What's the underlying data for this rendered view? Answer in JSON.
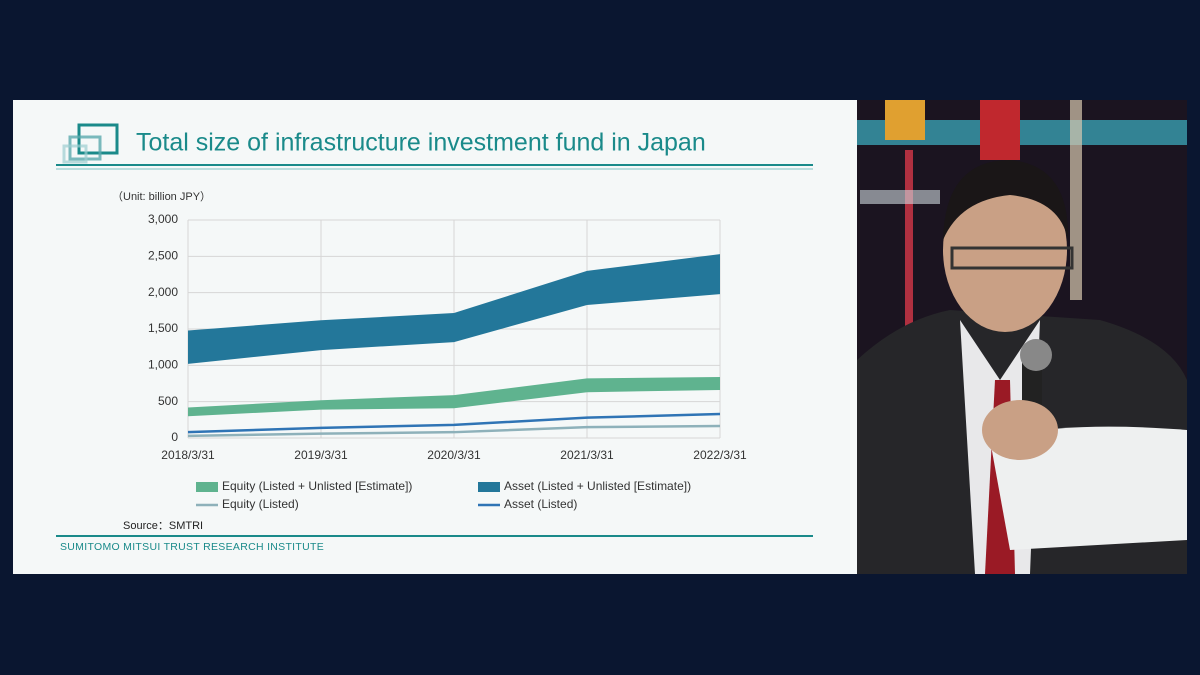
{
  "chart_data": {
    "type": "band-line",
    "title": "Total size of infrastructure investment fund in Japan",
    "unit_label": "（Unit: billion JPY）",
    "source": "Source：SMTRI",
    "footer": "SUMITOMO MITSUI TRUST RESEARCH INSTITUTE",
    "categories": [
      "2018/3/31",
      "2019/3/31",
      "2020/3/31",
      "2021/3/31",
      "2022/3/31"
    ],
    "ylim": [
      0,
      3000
    ],
    "yticks": [
      0,
      500,
      {
        "value": 1000,
        "label": "1,000"
      },
      {
        "value": 1500,
        "label": "1,500"
      },
      {
        "value": 2000,
        "label": "2,000"
      },
      {
        "value": 2500,
        "label": "2,500"
      },
      {
        "value": 3000,
        "label": "3,000"
      }
    ],
    "grid": true,
    "series": [
      {
        "name": "Equity (Listed + Unlisted [Estimate])",
        "kind": "band",
        "color": "#5fb38f",
        "values": [
          420,
          520,
          590,
          820,
          840
        ],
        "lower": [
          300,
          390,
          410,
          630,
          660
        ]
      },
      {
        "name": "Asset (Listed + Unlisted [Estimate])",
        "kind": "band",
        "color": "#23779a",
        "values": [
          1480,
          1620,
          1720,
          2300,
          2530
        ],
        "lower": [
          1020,
          1210,
          1320,
          1830,
          1980
        ]
      },
      {
        "name": "Equity (Listed)",
        "kind": "line",
        "color": "#8eb1ba",
        "values": [
          30,
          60,
          80,
          150,
          165
        ]
      },
      {
        "name": "Asset (Listed)",
        "kind": "line",
        "color": "#2f74b5",
        "values": [
          80,
          140,
          180,
          280,
          330
        ]
      }
    ]
  }
}
